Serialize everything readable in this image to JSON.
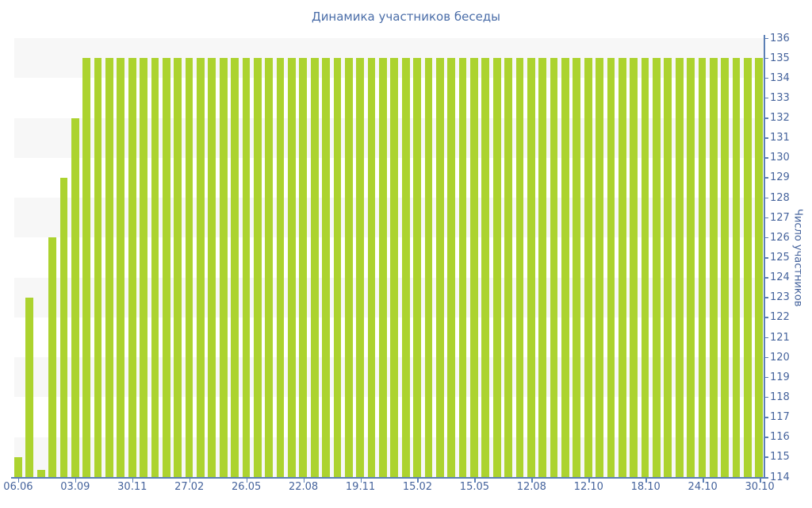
{
  "title": "Динамика участников беседы",
  "chart_data": {
    "type": "bar",
    "title": "Динамика участников беседы",
    "xlabel": "",
    "ylabel": "Число участников",
    "ylim": [
      114,
      136
    ],
    "ytick_step": 1,
    "grid": "striped-horizontal-bands",
    "band_units": 2,
    "legend_position": "none",
    "x_tick_labels": [
      "06.06",
      "03.09",
      "30.11",
      "27.02",
      "26.05",
      "22.08",
      "19.11",
      "15.02",
      "15.05",
      "12.08",
      "12.10",
      "18.10",
      "24.10",
      "30.10"
    ],
    "x_tick_every_n_bars": 5,
    "values": [
      115,
      123,
      114,
      126,
      129,
      132,
      135,
      135,
      135,
      135,
      135,
      135,
      135,
      135,
      135,
      135,
      135,
      135,
      135,
      135,
      135,
      135,
      135,
      135,
      135,
      135,
      135,
      135,
      135,
      135,
      135,
      135,
      135,
      135,
      135,
      135,
      135,
      135,
      135,
      135,
      135,
      135,
      135,
      135,
      135,
      135,
      135,
      135,
      135,
      135,
      135,
      135,
      135,
      135,
      135,
      135,
      135,
      135,
      135,
      135,
      135,
      135,
      135,
      135,
      135,
      135
    ],
    "colors": {
      "bar": "#acd32f",
      "title_text": "#4a6da8",
      "tick_label_text": "#45639c",
      "axis_line": "#5b7fb5",
      "stripe_band": "#f7f7f7",
      "background": "#ffffff"
    }
  }
}
